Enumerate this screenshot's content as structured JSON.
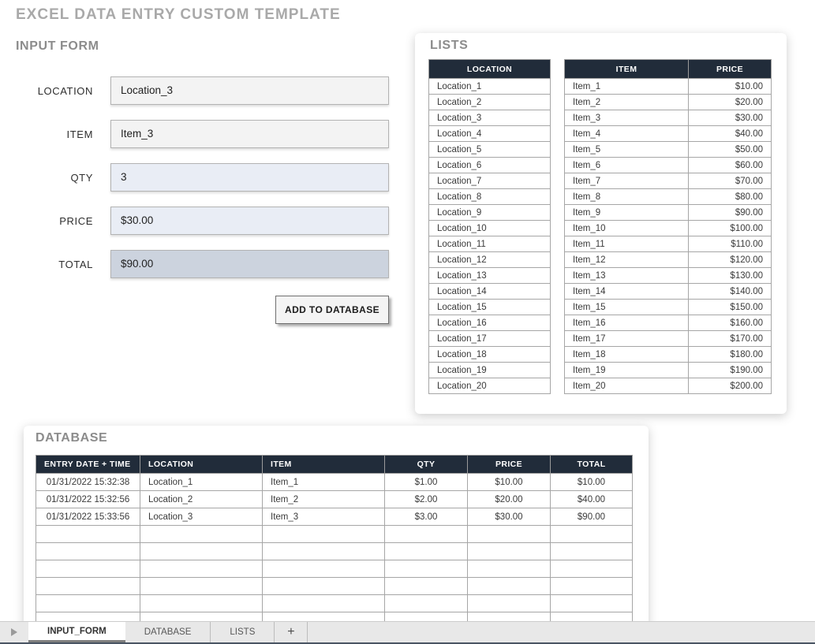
{
  "page": {
    "title": "EXCEL DATA ENTRY CUSTOM TEMPLATE"
  },
  "input_form": {
    "heading": "INPUT FORM",
    "fields": [
      {
        "label": "LOCATION",
        "value": "Location_3",
        "style": "gray"
      },
      {
        "label": "ITEM",
        "value": "Item_3",
        "style": "gray"
      },
      {
        "label": "QTY",
        "value": "3",
        "style": "blue"
      },
      {
        "label": "PRICE",
        "value": "$30.00",
        "style": "blue"
      },
      {
        "label": "TOTAL",
        "value": "$90.00",
        "style": "total"
      }
    ],
    "button_label": "ADD TO DATABASE"
  },
  "lists": {
    "heading": "LISTS",
    "location_table": {
      "header": "LOCATION",
      "rows": [
        "Location_1",
        "Location_2",
        "Location_3",
        "Location_4",
        "Location_5",
        "Location_6",
        "Location_7",
        "Location_8",
        "Location_9",
        "Location_10",
        "Location_11",
        "Location_12",
        "Location_13",
        "Location_14",
        "Location_15",
        "Location_16",
        "Location_17",
        "Location_18",
        "Location_19",
        "Location_20"
      ]
    },
    "item_table": {
      "headers": [
        "ITEM",
        "PRICE"
      ],
      "rows": [
        [
          "Item_1",
          "$10.00"
        ],
        [
          "Item_2",
          "$20.00"
        ],
        [
          "Item_3",
          "$30.00"
        ],
        [
          "Item_4",
          "$40.00"
        ],
        [
          "Item_5",
          "$50.00"
        ],
        [
          "Item_6",
          "$60.00"
        ],
        [
          "Item_7",
          "$70.00"
        ],
        [
          "Item_8",
          "$80.00"
        ],
        [
          "Item_9",
          "$90.00"
        ],
        [
          "Item_10",
          "$100.00"
        ],
        [
          "Item_11",
          "$110.00"
        ],
        [
          "Item_12",
          "$120.00"
        ],
        [
          "Item_13",
          "$130.00"
        ],
        [
          "Item_14",
          "$140.00"
        ],
        [
          "Item_15",
          "$150.00"
        ],
        [
          "Item_16",
          "$160.00"
        ],
        [
          "Item_17",
          "$170.00"
        ],
        [
          "Item_18",
          "$180.00"
        ],
        [
          "Item_19",
          "$190.00"
        ],
        [
          "Item_20",
          "$200.00"
        ]
      ]
    }
  },
  "database": {
    "heading": "DATABASE",
    "headers": [
      "ENTRY DATE + TIME",
      "LOCATION",
      "ITEM",
      "QTY",
      "PRICE",
      "TOTAL"
    ],
    "rows": [
      [
        "01/31/2022 15:32:38",
        "Location_1",
        "Item_1",
        "$1.00",
        "$10.00",
        "$10.00"
      ],
      [
        "01/31/2022 15:32:56",
        "Location_2",
        "Item_2",
        "$2.00",
        "$20.00",
        "$40.00"
      ],
      [
        "01/31/2022 15:33:56",
        "Location_3",
        "Item_3",
        "$3.00",
        "$30.00",
        "$90.00"
      ]
    ],
    "empty_row_count": 6
  },
  "sheet_tabs": {
    "tabs": [
      {
        "label": "INPUT_FORM",
        "active": true
      },
      {
        "label": "DATABASE",
        "active": false
      },
      {
        "label": "LISTS",
        "active": false
      }
    ],
    "add_label": "+"
  },
  "colors": {
    "table_header_bg": "#212c3a",
    "field_gray": "#f3f3f3",
    "field_blue": "#e9edf5",
    "field_total": "#ccd3de",
    "heading_gray": "#8c8c8c",
    "title_gray": "#a9a9a9",
    "tab_bottom_line": "#4a5563"
  }
}
